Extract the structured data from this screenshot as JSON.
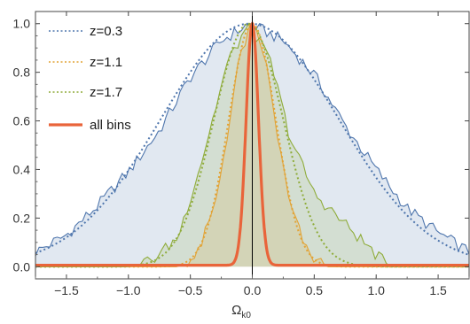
{
  "chart_data": {
    "type": "area",
    "xlabel": "Ω",
    "xlabel_sub": "k0",
    "ylabel": "",
    "xlim": [
      -1.75,
      1.75
    ],
    "ylim": [
      -0.05,
      1.05
    ],
    "xticks": [
      -1.5,
      -1.0,
      -0.5,
      0.0,
      0.5,
      1.0,
      1.5
    ],
    "xtick_labels": [
      "−1.5",
      "−1.0",
      "−0.5",
      "0.0",
      "0.5",
      "1.0",
      "1.5"
    ],
    "yticks": [
      0.0,
      0.2,
      0.4,
      0.6,
      0.8,
      1.0
    ],
    "ytick_labels": [
      "0.0",
      "0.2",
      "0.4",
      "0.6",
      "0.8",
      "1.0"
    ],
    "legend_position": "top-left",
    "vertical_line_x": 0,
    "series": [
      {
        "name": "z=0.3",
        "color": "#4f76ad",
        "style": "dotted+filled-histogram",
        "peak_x": -0.02,
        "sigma": 0.72,
        "hist_x": [
          -1.75,
          -1.5,
          -1.25,
          -1.0,
          -0.75,
          -0.5,
          -0.25,
          -0.02,
          0.25,
          0.5,
          0.75,
          1.0,
          1.25,
          1.5,
          1.75
        ],
        "hist_y": [
          0.06,
          0.13,
          0.25,
          0.39,
          0.56,
          0.78,
          0.93,
          1.0,
          0.93,
          0.79,
          0.58,
          0.4,
          0.24,
          0.14,
          0.06
        ]
      },
      {
        "name": "z=1.1",
        "color": "#e2a335",
        "style": "dotted+filled-histogram",
        "peak_x": 0.0,
        "sigma": 0.19,
        "hist_x": [
          -0.6,
          -0.45,
          -0.3,
          -0.2,
          -0.1,
          0.0,
          0.1,
          0.2,
          0.3,
          0.45,
          0.6
        ],
        "hist_y": [
          0.0,
          0.04,
          0.25,
          0.55,
          0.87,
          1.0,
          0.87,
          0.55,
          0.26,
          0.05,
          0.0
        ]
      },
      {
        "name": "z=1.7",
        "color": "#8fac3a",
        "style": "dotted+filled-histogram",
        "peak_x": -0.03,
        "sigma": 0.28,
        "hist_x": [
          -1.0,
          -0.8,
          -0.6,
          -0.4,
          -0.2,
          -0.03,
          0.15,
          0.3,
          0.5,
          0.7,
          0.9,
          1.1
        ],
        "hist_y": [
          0.0,
          0.03,
          0.12,
          0.45,
          0.84,
          1.0,
          0.84,
          0.54,
          0.3,
          0.2,
          0.1,
          0.0
        ]
      },
      {
        "name": "all bins",
        "color": "#e9643a",
        "style": "thick-solid",
        "peak_x": 0.0,
        "sigma": 0.05,
        "curve_x": [
          -0.3,
          -0.15,
          -0.1,
          -0.05,
          0.0,
          0.05,
          0.1,
          0.15,
          0.3
        ],
        "curve_y": [
          0.0,
          0.01,
          0.14,
          0.61,
          1.0,
          0.61,
          0.14,
          0.01,
          0.0
        ]
      }
    ]
  }
}
